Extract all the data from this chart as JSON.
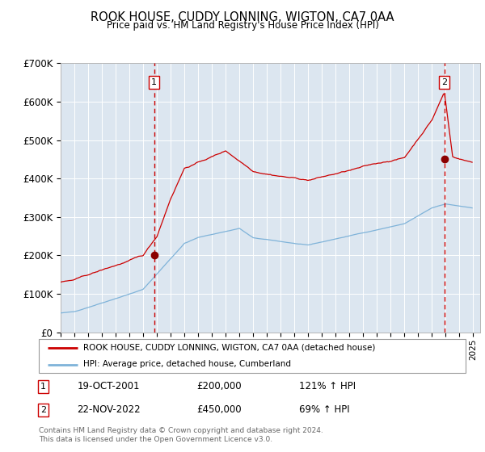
{
  "title": "ROOK HOUSE, CUDDY LONNING, WIGTON, CA7 0AA",
  "subtitle": "Price paid vs. HM Land Registry's House Price Index (HPI)",
  "ylim": [
    0,
    700000
  ],
  "yticks": [
    0,
    100000,
    200000,
    300000,
    400000,
    500000,
    600000,
    700000
  ],
  "ytick_labels": [
    "£0",
    "£100K",
    "£200K",
    "£300K",
    "£400K",
    "£500K",
    "£600K",
    "£700K"
  ],
  "xlim_start": 1995.0,
  "xlim_end": 2025.5,
  "plot_bg_color": "#dce6f0",
  "line_color_red": "#cc0000",
  "line_color_blue": "#7fb3d9",
  "sale1_x": 2001.8,
  "sale1_y": 200000,
  "sale2_x": 2022.9,
  "sale2_y": 450000,
  "legend_label_red": "ROOK HOUSE, CUDDY LONNING, WIGTON, CA7 0AA (detached house)",
  "legend_label_blue": "HPI: Average price, detached house, Cumberland",
  "note1_date": "19-OCT-2001",
  "note1_price": "£200,000",
  "note1_hpi": "121% ↑ HPI",
  "note2_date": "22-NOV-2022",
  "note2_price": "£450,000",
  "note2_hpi": "69% ↑ HPI",
  "footer": "Contains HM Land Registry data © Crown copyright and database right 2024.\nThis data is licensed under the Open Government Licence v3.0."
}
